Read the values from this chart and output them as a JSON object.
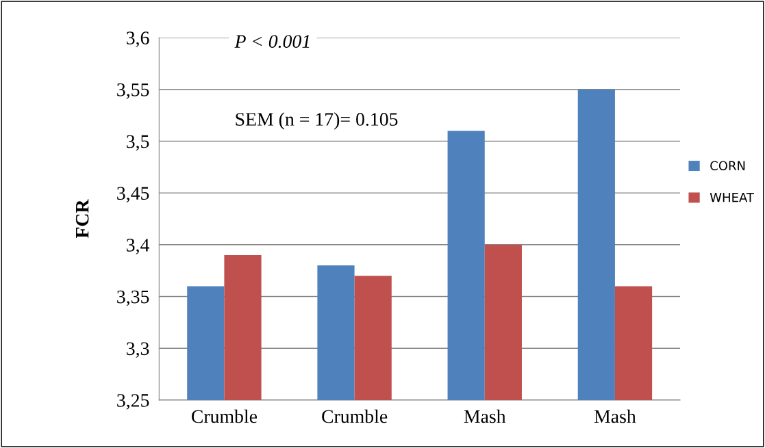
{
  "chart_data": {
    "type": "bar",
    "ylabel": "FCR",
    "categories": [
      "Crumble",
      "Crumble",
      "Mash",
      "Mash"
    ],
    "series": [
      {
        "name": "CORN",
        "color": "#4f81bd",
        "values": [
          3.36,
          3.38,
          3.51,
          3.55
        ]
      },
      {
        "name": "WHEAT",
        "color": "#c0504d",
        "values": [
          3.39,
          3.37,
          3.4,
          3.36
        ]
      }
    ],
    "ylim": [
      3.25,
      3.6
    ],
    "yticks": [
      {
        "value": 3.25,
        "label": "3,25"
      },
      {
        "value": 3.3,
        "label": "3,3"
      },
      {
        "value": 3.35,
        "label": "3,35"
      },
      {
        "value": 3.4,
        "label": "3,4"
      },
      {
        "value": 3.45,
        "label": "3,45"
      },
      {
        "value": 3.5,
        "label": "3,5"
      },
      {
        "value": 3.55,
        "label": "3,55"
      },
      {
        "value": 3.6,
        "label": "3,6"
      }
    ],
    "grid": "y",
    "legend": "right",
    "annotations": [
      "P < 0.001",
      "SEM (n = 17)= 0.105"
    ]
  }
}
